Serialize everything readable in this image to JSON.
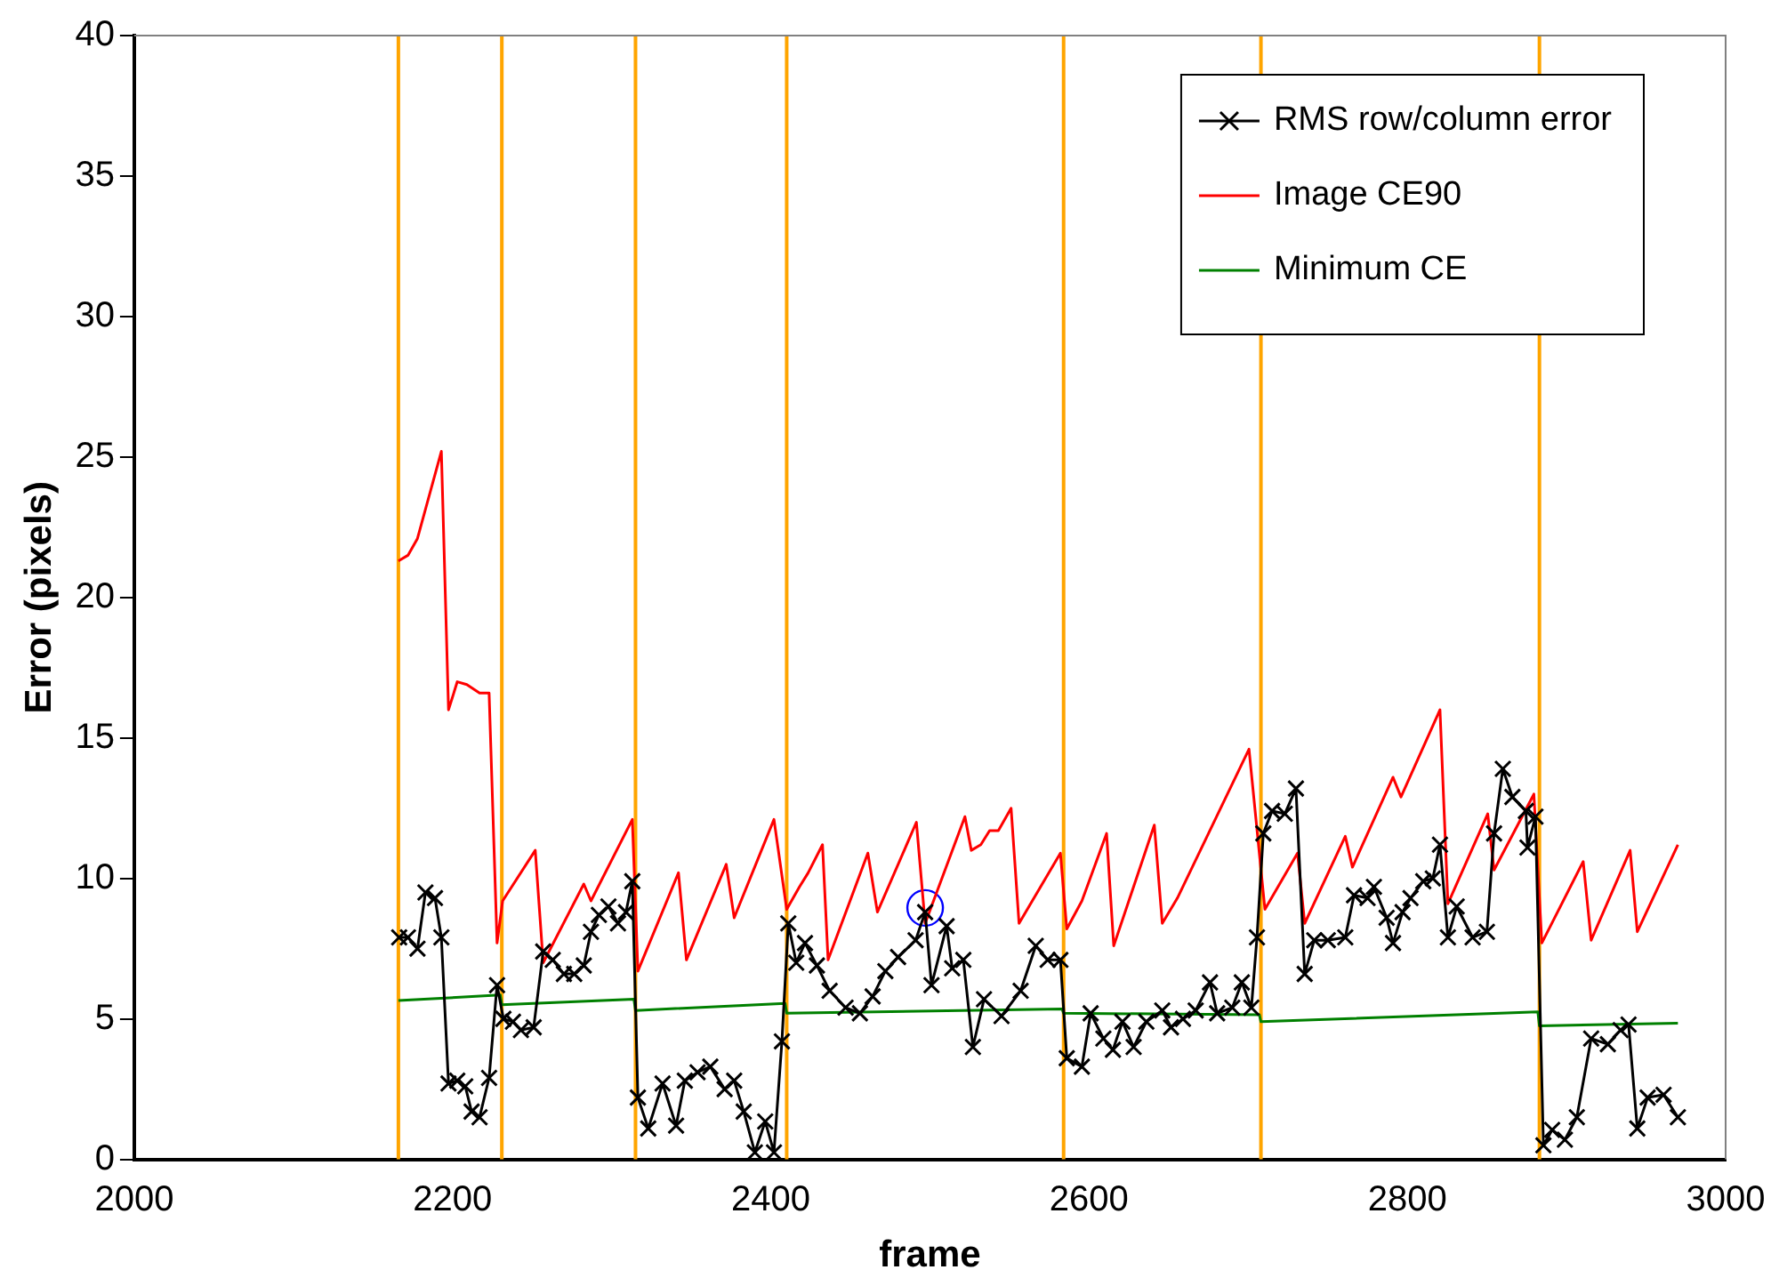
{
  "chart_data": {
    "type": "line",
    "xlabel": "frame",
    "ylabel": "Error (pixels)",
    "xlim": [
      2000,
      3000
    ],
    "xticks": [
      2000,
      2200,
      2400,
      2600,
      2800,
      3000
    ],
    "ylim": [
      0,
      40
    ],
    "yticks": [
      0,
      5,
      10,
      15,
      20,
      25,
      30,
      35,
      40
    ],
    "grid": false,
    "legend": "top right",
    "series": [
      {
        "name": "RMS row/column error",
        "color": "#000000",
        "marker": "cross",
        "x": [
          2166.5,
          2172,
          2178,
          2183,
          2189,
          2193,
          2197.5,
          2203,
          2208,
          2212,
          2217,
          2223,
          2228,
          2232,
          2238,
          2243,
          2251,
          2257,
          2263,
          2270,
          2276.5,
          2282.5,
          2287,
          2292,
          2298,
          2304,
          2309,
          2313,
          2316.5,
          2323,
          2332,
          2340.5,
          2346,
          2354,
          2362,
          2371,
          2377,
          2383,
          2390,
          2396.5,
          2402,
          2407,
          2411,
          2416,
          2421.5,
          2429,
          2437,
          2447,
          2456,
          2464,
          2472,
          2480,
          2491,
          2497,
          2501,
          2510.5,
          2514,
          2521,
          2527,
          2534,
          2545,
          2557,
          2566.5,
          2574,
          2582,
          2586,
          2595.5,
          2601,
          2609,
          2615,
          2621,
          2628,
          2636,
          2646,
          2651.5,
          2659,
          2667,
          2676,
          2680.5,
          2690,
          2696,
          2702,
          2705.5,
          2709.5,
          2715,
          2723,
          2730,
          2735.5,
          2741.5,
          2750,
          2761,
          2766.5,
          2775,
          2779,
          2787,
          2791,
          2797,
          2802,
          2810,
          2816,
          2820.5,
          2825.5,
          2831,
          2841,
          2850,
          2854.5,
          2860,
          2866,
          2874.5,
          2875.5,
          2880.5,
          2885.5,
          2891,
          2899,
          2906.5,
          2915.5,
          2926,
          2934,
          2939,
          2944.5,
          2951,
          2961,
          2970
        ],
        "values": [
          7.9,
          7.9,
          7.5,
          9.5,
          9.3,
          7.9,
          2.7,
          2.8,
          2.6,
          1.7,
          1.5,
          2.9,
          6.2,
          5.0,
          4.9,
          4.6,
          4.7,
          7.4,
          7.1,
          6.6,
          6.6,
          6.9,
          8.1,
          8.7,
          9.0,
          8.4,
          8.8,
          9.9,
          2.2,
          1.1,
          2.7,
          1.2,
          2.8,
          3.1,
          3.3,
          2.5,
          2.8,
          1.7,
          0.25,
          1.35,
          0.25,
          4.2,
          8.4,
          7.0,
          7.7,
          6.9,
          6.0,
          5.4,
          5.2,
          5.8,
          6.7,
          7.2,
          7.8,
          8.8,
          6.2,
          8.3,
          6.8,
          7.1,
          4.0,
          5.7,
          5.1,
          6.0,
          7.6,
          7.1,
          7.1,
          3.6,
          3.3,
          5.2,
          4.3,
          3.9,
          4.9,
          4.0,
          4.9,
          5.3,
          4.7,
          5.0,
          5.3,
          6.3,
          5.2,
          5.4,
          6.3,
          5.4,
          7.9,
          11.6,
          12.4,
          12.3,
          13.2,
          6.6,
          7.8,
          7.8,
          7.9,
          9.4,
          9.3,
          9.7,
          8.6,
          7.7,
          8.8,
          9.3,
          9.9,
          10.0,
          11.2,
          7.9,
          9.0,
          7.9,
          8.1,
          11.6,
          13.9,
          12.9,
          12.4,
          11.1,
          12.2,
          0.5,
          1.05,
          0.7,
          1.5,
          4.3,
          4.1,
          4.6,
          4.8,
          1.1,
          2.2,
          2.3,
          1.5
        ]
      },
      {
        "name": "Image CE90",
        "color": "#ff0000",
        "x": [
          2166,
          2172,
          2178,
          2193,
          2197.5,
          2203,
          2209,
          2217,
          2223,
          2228,
          2231.5,
          2252,
          2257,
          2282.5,
          2287,
          2313,
          2316.5,
          2342,
          2347,
          2372,
          2377,
          2402,
          2410,
          2418,
          2423.5,
          2432.5,
          2436,
          2461,
          2467,
          2491.5,
          2497,
          2522,
          2526,
          2532,
          2537.5,
          2543,
          2551,
          2556,
          2582,
          2586,
          2595.5,
          2611,
          2615.5,
          2641,
          2646,
          2655.5,
          2700.5,
          2710.5,
          2731,
          2735.5,
          2761,
          2765.5,
          2791,
          2796,
          2820.5,
          2825.5,
          2850.5,
          2854.5,
          2879.5,
          2884.5,
          2910.5,
          2915.5,
          2940,
          2944.5,
          2970
        ],
        "values": [
          21.3,
          21.5,
          22.1,
          25.2,
          16.0,
          17.0,
          16.9,
          16.6,
          16.6,
          7.7,
          9.2,
          11.0,
          7.0,
          9.8,
          9.2,
          12.1,
          6.7,
          10.2,
          7.1,
          10.5,
          8.6,
          12.1,
          8.9,
          9.7,
          10.2,
          11.2,
          7.1,
          10.9,
          8.8,
          12.0,
          8.4,
          12.2,
          11.0,
          11.2,
          11.7,
          11.7,
          12.5,
          8.4,
          10.9,
          8.2,
          9.2,
          11.6,
          7.6,
          11.9,
          8.4,
          9.3,
          14.6,
          8.9,
          10.9,
          8.4,
          11.5,
          10.4,
          13.6,
          12.9,
          16.0,
          9.1,
          12.3,
          10.3,
          13.0,
          7.7,
          10.6,
          7.8,
          11.0,
          8.1,
          11.2
        ]
      },
      {
        "name": "Minimum CE",
        "color": "#008000",
        "x": [
          2166,
          2230,
          2231,
          2314,
          2315,
          2409,
          2410,
          2583,
          2584,
          2707,
          2708,
          2882,
          2883,
          2970
        ],
        "values": [
          5.65,
          5.85,
          5.5,
          5.7,
          5.3,
          5.55,
          5.2,
          5.35,
          5.2,
          5.15,
          4.9,
          5.25,
          4.75,
          4.85
        ]
      },
      {
        "type": "scatter",
        "color": "#0000ff",
        "marker": "circle",
        "x": [
          2497
        ],
        "values": [
          8.95
        ]
      }
    ],
    "ref_lines": [
      {
        "axis": "x",
        "value": 2166,
        "color": "#ffa500"
      },
      {
        "axis": "x",
        "value": 2231,
        "color": "#ffa500"
      },
      {
        "axis": "x",
        "value": 2315,
        "color": "#ffa500"
      },
      {
        "axis": "x",
        "value": 2410,
        "color": "#ffa500"
      },
      {
        "axis": "x",
        "value": 2584,
        "color": "#ffa500"
      },
      {
        "axis": "x",
        "value": 2708,
        "color": "#ffa500"
      },
      {
        "axis": "x",
        "value": 2883,
        "color": "#ffa500"
      }
    ]
  }
}
